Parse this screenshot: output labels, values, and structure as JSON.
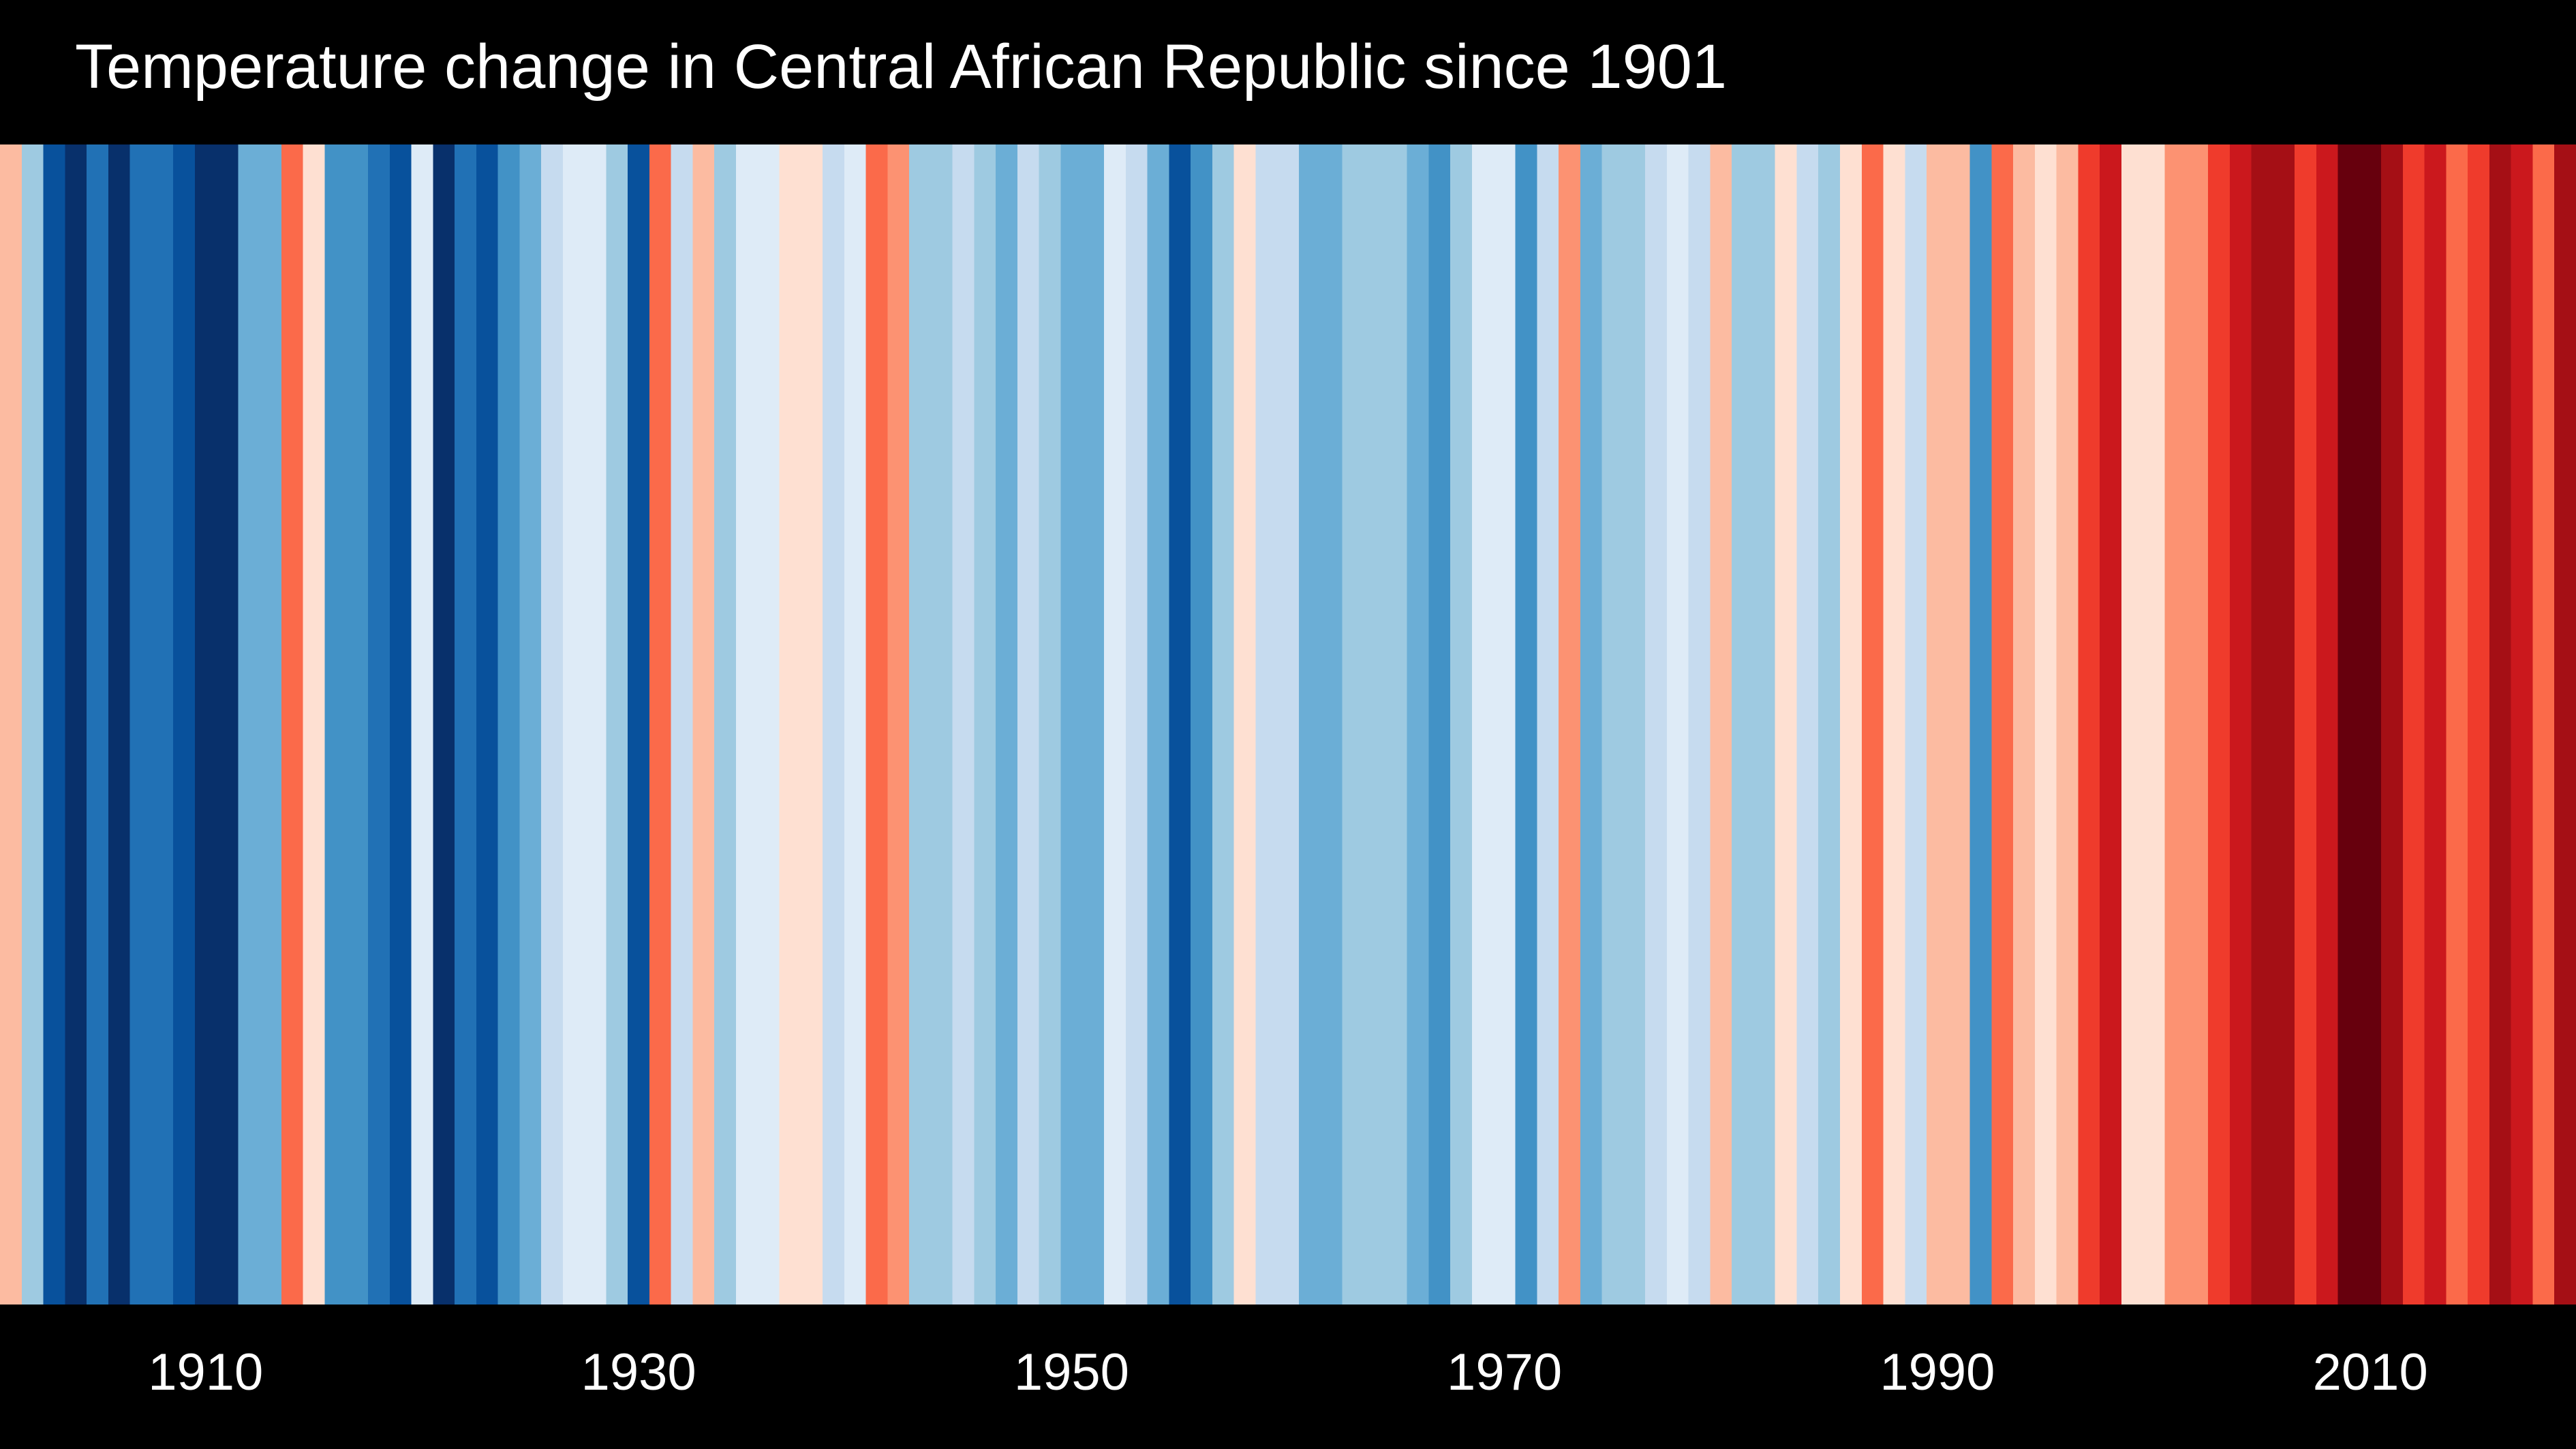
{
  "chart_data": {
    "type": "heatmap",
    "title": "Temperature change in Central African Republic since 1901",
    "xlabel": "",
    "ylabel": "",
    "x_range": [
      1901,
      2019
    ],
    "tick_labels": [
      "1910",
      "1930",
      "1950",
      "1970",
      "1990",
      "2010"
    ],
    "tick_years": [
      1910,
      1930,
      1950,
      1970,
      1990,
      2010
    ],
    "years": [
      1901,
      1902,
      1903,
      1904,
      1905,
      1906,
      1907,
      1908,
      1909,
      1910,
      1911,
      1912,
      1913,
      1914,
      1915,
      1916,
      1917,
      1918,
      1919,
      1920,
      1921,
      1922,
      1923,
      1924,
      1925,
      1926,
      1927,
      1928,
      1929,
      1930,
      1931,
      1932,
      1933,
      1934,
      1935,
      1936,
      1937,
      1938,
      1939,
      1940,
      1941,
      1942,
      1943,
      1944,
      1945,
      1946,
      1947,
      1948,
      1949,
      1950,
      1951,
      1952,
      1953,
      1954,
      1955,
      1956,
      1957,
      1958,
      1959,
      1960,
      1961,
      1962,
      1963,
      1964,
      1965,
      1966,
      1967,
      1968,
      1969,
      1970,
      1971,
      1972,
      1973,
      1974,
      1975,
      1976,
      1977,
      1978,
      1979,
      1980,
      1981,
      1982,
      1983,
      1984,
      1985,
      1986,
      1987,
      1988,
      1989,
      1990,
      1991,
      1992,
      1993,
      1994,
      1995,
      1996,
      1997,
      1998,
      1999,
      2000,
      2001,
      2002,
      2003,
      2004,
      2005,
      2006,
      2007,
      2008,
      2009,
      2010,
      2011,
      2012,
      2013,
      2014,
      2015,
      2016,
      2017,
      2018,
      2019
    ],
    "stripe_colors": [
      "#fcbba1",
      "#9ecae1",
      "#08519c",
      "#08306b",
      "#2171b5",
      "#08306b",
      "#2171b5",
      "#2171b5",
      "#08519c",
      "#08306b",
      "#08306b",
      "#6baed6",
      "#6baed6",
      "#fb6a4a",
      "#fee0d2",
      "#4292c6",
      "#4292c6",
      "#2171b5",
      "#08519c",
      "#deebf7",
      "#08306b",
      "#2171b5",
      "#08519c",
      "#4292c6",
      "#6baed6",
      "#c6dbef",
      "#deebf7",
      "#deebf7",
      "#9ecae1",
      "#08519c",
      "#fb6a4a",
      "#c6dbef",
      "#fcbba1",
      "#9ecae1",
      "#deebf7",
      "#deebf7",
      "#fee0d2",
      "#fee0d2",
      "#c6dbef",
      "#deebf7",
      "#fb6a4a",
      "#fc9272",
      "#9ecae1",
      "#9ecae1",
      "#c6dbef",
      "#9ecae1",
      "#6baed6",
      "#c6dbef",
      "#9ecae1",
      "#6baed6",
      "#6baed6",
      "#deebf7",
      "#c6dbef",
      "#6baed6",
      "#08519c",
      "#4292c6",
      "#9ecae1",
      "#fee0d2",
      "#c6dbef",
      "#c6dbef",
      "#6baed6",
      "#6baed6",
      "#9ecae1",
      "#9ecae1",
      "#9ecae1",
      "#6baed6",
      "#4292c6",
      "#9ecae1",
      "#deebf7",
      "#deebf7",
      "#4292c6",
      "#c6dbef",
      "#fc9272",
      "#6baed6",
      "#9ecae1",
      "#9ecae1",
      "#c6dbef",
      "#deebf7",
      "#c6dbef",
      "#fcbba1",
      "#9ecae1",
      "#9ecae1",
      "#fee0d2",
      "#c6dbef",
      "#9ecae1",
      "#fee0d2",
      "#fb6a4a",
      "#fee0d2",
      "#c6dbef",
      "#fcbba1",
      "#fcbba1",
      "#4292c6",
      "#fb6a4a",
      "#fcbba1",
      "#fee0d2",
      "#fcbba1",
      "#ef3b2c",
      "#cb181d",
      "#fee0d2",
      "#fee0d2",
      "#fc9272",
      "#fc9272",
      "#ef3b2c",
      "#cb181d",
      "#a50f15",
      "#a50f15",
      "#ef3b2c",
      "#cb181d",
      "#67000d",
      "#67000d",
      "#a50f15",
      "#ef3b2c",
      "#cb181d",
      "#fb6a4a",
      "#ef3b2c",
      "#a50f15",
      "#cb181d",
      "#fb6a4a",
      "#a50f15"
    ],
    "grid": false,
    "legend": "none"
  }
}
